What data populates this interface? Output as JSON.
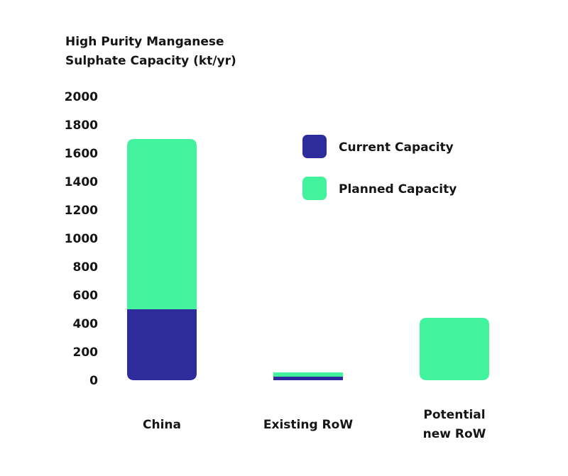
{
  "chart_data": {
    "type": "bar",
    "stacked": true,
    "title_lines": [
      "High Purity Manganese",
      "Sulphate Capacity (kt/yr)"
    ],
    "xlabel": "",
    "ylabel": "",
    "categories": [
      [
        "China"
      ],
      [
        "Existing RoW"
      ],
      [
        "Potential",
        "new RoW"
      ]
    ],
    "series": [
      {
        "name": "Current Capacity",
        "color": "#2e2c9c",
        "values": [
          500,
          25,
          0
        ]
      },
      {
        "name": "Planned Capacity",
        "color": "#43f29c",
        "values": [
          1200,
          30,
          440
        ]
      }
    ],
    "ylim": [
      0,
      2000
    ],
    "yticks": [
      "0",
      "200",
      "400",
      "600",
      "800",
      "1000",
      "1200",
      "1400",
      "1600",
      "1800",
      "2000"
    ],
    "grid": false,
    "legend_position": "top-right"
  }
}
